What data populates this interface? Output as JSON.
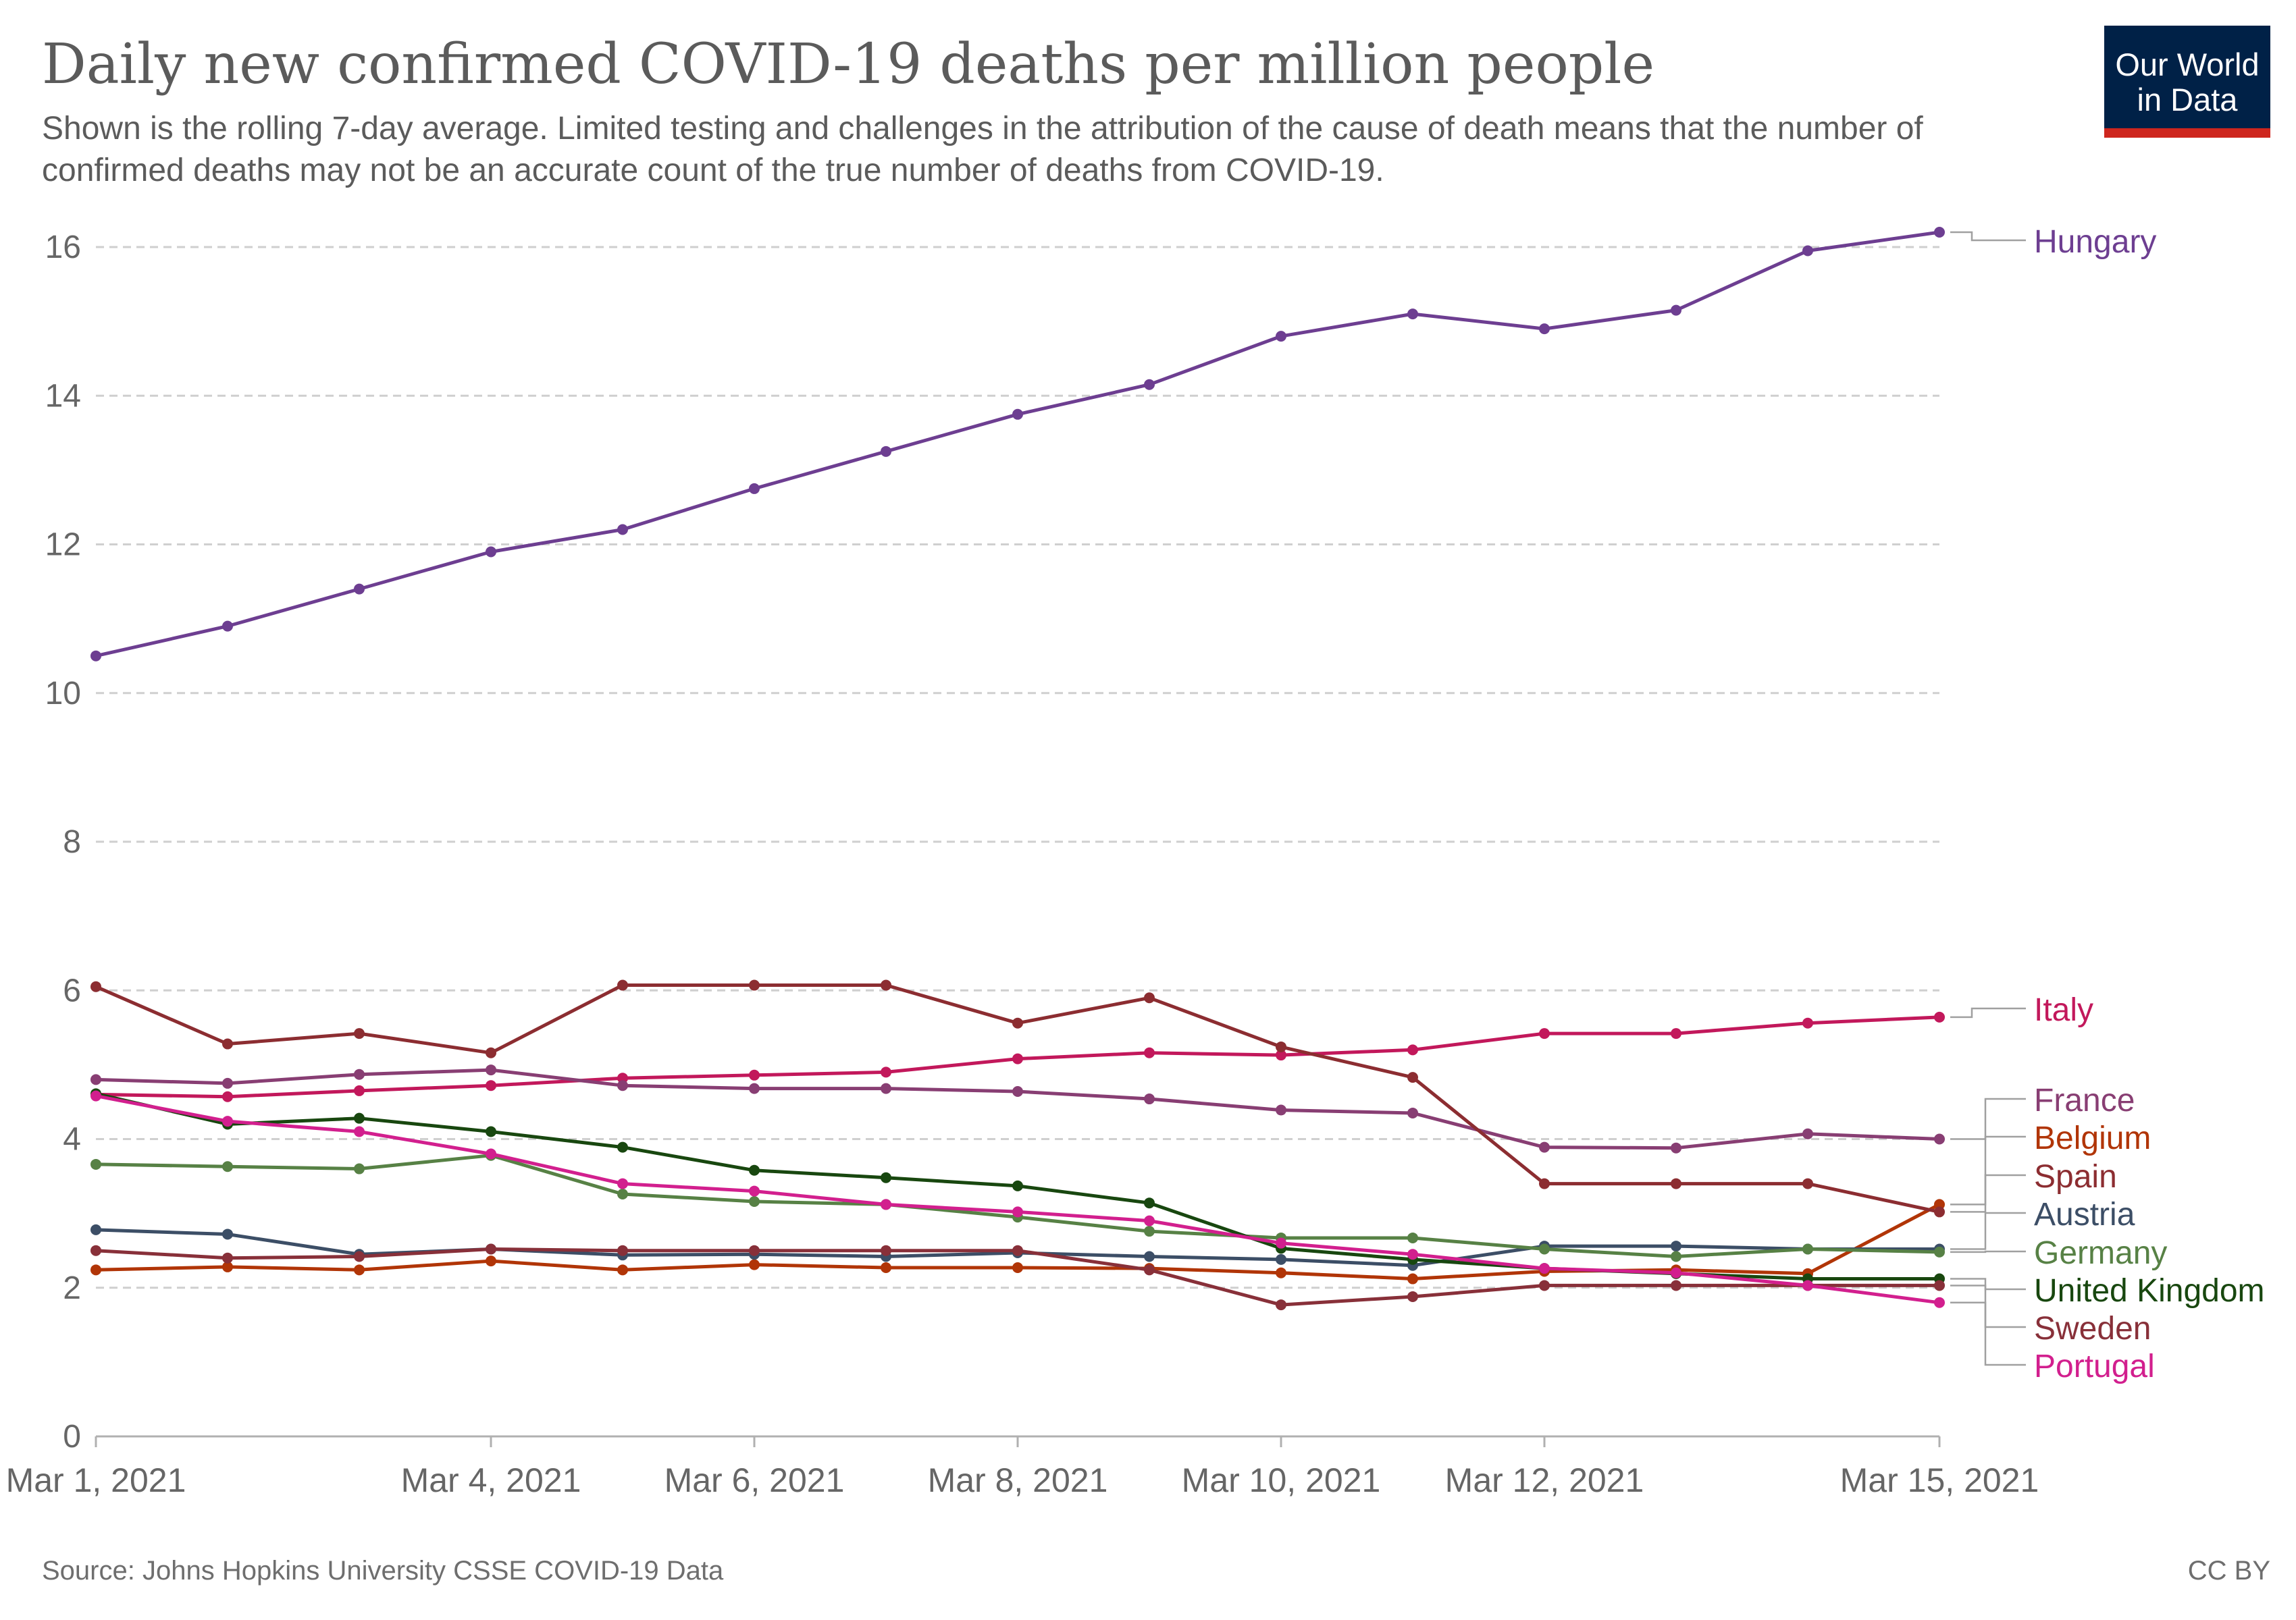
{
  "title": "Daily new confirmed COVID-19 deaths per million people",
  "subtitle": "Shown is the rolling 7-day average. Limited testing and challenges in the attribution of the cause of death means that the number of confirmed deaths may not be an accurate count of the true number of deaths from COVID-19.",
  "logo": {
    "line1": "Our World",
    "line2": "in Data",
    "bg": "#002147",
    "accent": "#ce261e"
  },
  "footer": {
    "source": "Source: Johns Hopkins University CSSE COVID-19 Data",
    "license": "CC BY"
  },
  "chart_data": {
    "type": "line",
    "title": "Daily new confirmed COVID-19 deaths per million people",
    "xlabel": "",
    "ylabel": "",
    "ylim": [
      0,
      16
    ],
    "yticks": [
      0,
      2,
      4,
      6,
      8,
      10,
      12,
      14,
      16
    ],
    "x": [
      "Mar 1, 2021",
      "Mar 2, 2021",
      "Mar 3, 2021",
      "Mar 4, 2021",
      "Mar 5, 2021",
      "Mar 6, 2021",
      "Mar 7, 2021",
      "Mar 8, 2021",
      "Mar 9, 2021",
      "Mar 10, 2021",
      "Mar 11, 2021",
      "Mar 12, 2021",
      "Mar 13, 2021",
      "Mar 14, 2021",
      "Mar 15, 2021"
    ],
    "xtick_labels": [
      "Mar 1, 2021",
      "Mar 4, 2021",
      "Mar 6, 2021",
      "Mar 8, 2021",
      "Mar 10, 2021",
      "Mar 12, 2021",
      "Mar 15, 2021"
    ],
    "grid": "horizontal dashed",
    "legend": "right (line-end labels)",
    "series": [
      {
        "name": "Hungary",
        "color": "#6d3e91",
        "values": [
          10.5,
          10.9,
          11.4,
          11.9,
          12.2,
          12.75,
          13.25,
          13.75,
          14.15,
          14.8,
          15.1,
          14.9,
          15.15,
          15.95,
          16.2
        ]
      },
      {
        "name": "Italy",
        "color": "#c2185b",
        "values": [
          4.6,
          4.57,
          4.65,
          4.72,
          4.82,
          4.86,
          4.9,
          5.08,
          5.16,
          5.13,
          5.2,
          5.42,
          5.42,
          5.56,
          5.64
        ]
      },
      {
        "name": "France",
        "color": "#883e73",
        "values": [
          4.8,
          4.75,
          4.87,
          4.93,
          4.72,
          4.68,
          4.68,
          4.64,
          4.54,
          4.39,
          4.35,
          3.89,
          3.88,
          4.07,
          4.0
        ]
      },
      {
        "name": "Belgium",
        "color": "#b13507",
        "values": [
          2.24,
          2.28,
          2.24,
          2.36,
          2.24,
          2.31,
          2.27,
          2.27,
          2.26,
          2.2,
          2.12,
          2.22,
          2.24,
          2.19,
          3.12
        ]
      },
      {
        "name": "Spain",
        "color": "#8c2d31",
        "values": [
          6.05,
          5.28,
          5.42,
          5.16,
          6.07,
          6.07,
          6.07,
          5.56,
          5.9,
          5.24,
          4.83,
          3.4,
          3.4,
          3.4,
          3.02
        ]
      },
      {
        "name": "Austria",
        "color": "#3c4e66",
        "values": [
          2.78,
          2.72,
          2.45,
          2.52,
          2.44,
          2.45,
          2.42,
          2.47,
          2.42,
          2.38,
          2.3,
          2.56,
          2.56,
          2.52,
          2.52
        ]
      },
      {
        "name": "Germany",
        "color": "#578145",
        "values": [
          3.66,
          3.63,
          3.6,
          3.78,
          3.26,
          3.16,
          3.12,
          2.95,
          2.76,
          2.67,
          2.67,
          2.52,
          2.42,
          2.52,
          2.48
        ]
      },
      {
        "name": "United Kingdom",
        "color": "#18470f",
        "values": [
          4.61,
          4.2,
          4.28,
          4.1,
          3.89,
          3.58,
          3.48,
          3.37,
          3.14,
          2.53,
          2.38,
          2.26,
          2.19,
          2.12,
          2.12
        ]
      },
      {
        "name": "Sweden",
        "color": "#883039",
        "values": [
          2.5,
          2.4,
          2.42,
          2.52,
          2.5,
          2.5,
          2.5,
          2.5,
          2.24,
          1.77,
          1.88,
          2.03,
          2.03,
          2.03,
          2.03
        ]
      },
      {
        "name": "Portugal",
        "color": "#d21f8e",
        "values": [
          4.58,
          4.24,
          4.1,
          3.8,
          3.4,
          3.3,
          3.12,
          3.02,
          2.9,
          2.6,
          2.45,
          2.26,
          2.2,
          2.03,
          1.8
        ]
      }
    ]
  }
}
